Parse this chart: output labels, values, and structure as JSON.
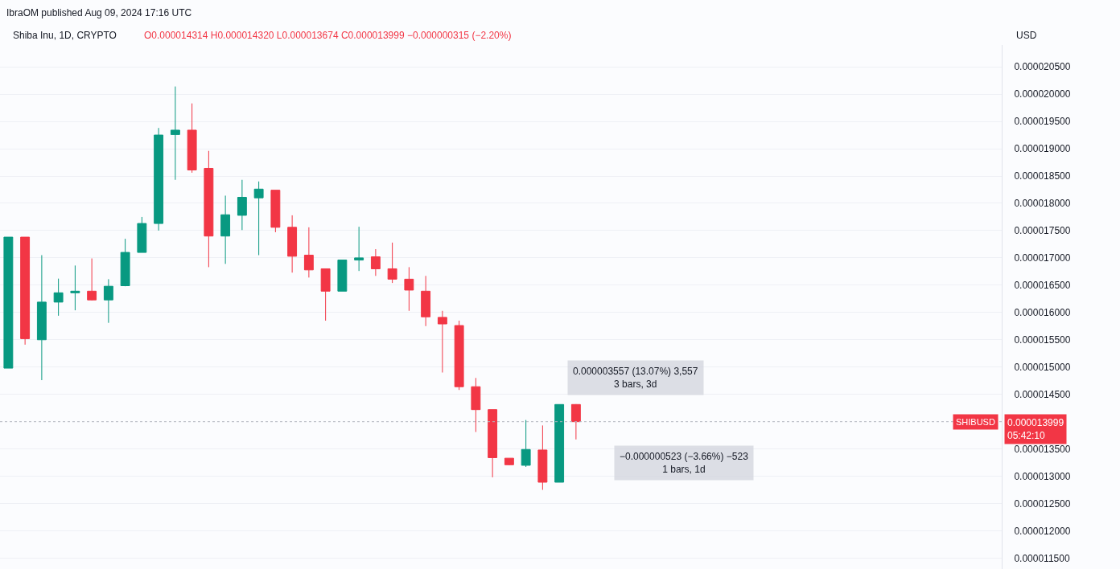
{
  "chart_data": {
    "type": "candlestick",
    "title": "IbraOM published Aug 09, 2024 17:16 UTC",
    "subtitle": "Shiba Inu, 1D, CRYPTO",
    "ylabel": "USD",
    "categories": [
      null,
      null,
      null,
      null,
      null,
      null,
      null,
      null,
      null,
      null,
      null,
      null,
      null,
      null,
      null,
      null,
      null,
      null,
      null,
      null,
      null,
      null,
      null,
      null,
      null,
      null,
      null,
      null,
      null,
      null,
      null,
      null,
      null,
      null,
      null,
      null,
      null,
      null,
      null,
      null,
      null,
      null,
      null,
      null,
      null,
      null,
      null,
      null,
      null,
      null,
      null,
      null,
      null,
      null,
      null,
      null,
      null,
      null,
      null,
      null
    ],
    "ohlc": [
      [
        1.498e-05,
        1.738e-05,
        1.498e-05,
        1.738e-05
      ],
      [
        1.738e-05,
        1.738e-05,
        1.541e-05,
        1.552e-05
      ],
      [
        1.55e-05,
        1.705e-05,
        1.476e-05,
        1.619e-05
      ],
      [
        1.619e-05,
        1.662e-05,
        1.594e-05,
        1.636e-05
      ],
      [
        1.636e-05,
        1.686e-05,
        1.604e-05,
        1.639e-05
      ],
      [
        1.639e-05,
        1.699e-05,
        1.622e-05,
        1.623e-05
      ],
      [
        1.623e-05,
        1.661e-05,
        1.581e-05,
        1.648e-05
      ],
      [
        1.649e-05,
        1.735e-05,
        1.648e-05,
        1.71e-05
      ],
      [
        1.71e-05,
        1.775e-05,
        1.71e-05,
        1.763e-05
      ],
      [
        1.763e-05,
        1.938e-05,
        1.75e-05,
        1.925e-05
      ],
      [
        1.926e-05,
        2.014e-05,
        1.843e-05,
        1.934e-05
      ],
      [
        1.934e-05,
        1.983e-05,
        1.856e-05,
        1.861e-05
      ],
      [
        1.864e-05,
        1.896e-05,
        1.683e-05,
        1.74e-05
      ],
      [
        1.74e-05,
        1.814e-05,
        1.689e-05,
        1.779e-05
      ],
      [
        1.778e-05,
        1.843e-05,
        1.751e-05,
        1.811e-05
      ],
      [
        1.81e-05,
        1.84e-05,
        1.705e-05,
        1.826e-05
      ],
      [
        1.824e-05,
        1.824e-05,
        1.747e-05,
        1.756e-05
      ],
      [
        1.756e-05,
        1.778e-05,
        1.673e-05,
        1.703e-05
      ],
      [
        1.705e-05,
        1.756e-05,
        1.664e-05,
        1.678e-05
      ],
      [
        1.68e-05,
        1.68e-05,
        1.585e-05,
        1.639e-05
      ],
      [
        1.639e-05,
        1.696e-05,
        1.639e-05,
        1.696e-05
      ],
      [
        1.696e-05,
        1.757e-05,
        1.676e-05,
        1.7e-05
      ],
      [
        1.702e-05,
        1.716e-05,
        1.667e-05,
        1.68e-05
      ],
      [
        1.68e-05,
        1.728e-05,
        1.654e-05,
        1.661e-05
      ],
      [
        1.661e-05,
        1.683e-05,
        1.603e-05,
        1.641e-05
      ],
      [
        1.639e-05,
        1.667e-05,
        1.575e-05,
        1.592e-05
      ],
      [
        1.591e-05,
        1.603e-05,
        1.49e-05,
        1.579e-05
      ],
      [
        1.576e-05,
        1.585e-05,
        1.458e-05,
        1.464e-05
      ],
      [
        1.464e-05,
        1.48e-05,
        1.381e-05,
        1.422e-05
      ],
      [
        1.422e-05,
        1.422e-05,
        1.298e-05,
        1.334e-05
      ],
      [
        1.333e-05,
        1.333e-05,
        1.32e-05,
        1.321e-05
      ],
      [
        1.32e-05,
        1.403e-05,
        1.317e-05,
        1.349e-05
      ],
      [
        1.348e-05,
        1.393e-05,
        1.275e-05,
        1.289e-05
      ],
      [
        1.289e-05,
        1.4314e-05,
        1.289e-05,
        1.4314e-05
      ],
      [
        1.4314e-05,
        1.432e-05,
        1.3674e-05,
        1.3999e-05
      ],
      null,
      null,
      null,
      null,
      null,
      null,
      null,
      null,
      null,
      null,
      null,
      null,
      null,
      null,
      null,
      null,
      null,
      null,
      null,
      null,
      null,
      null,
      null,
      null,
      null
    ],
    "colors": [
      "#089981",
      "#f23645",
      "#089981",
      "#089981",
      "#089981",
      "#f23645",
      "#089981",
      "#089981",
      "#089981",
      "#089981",
      "#089981",
      "#f23645",
      "#f23645",
      "#089981",
      "#089981",
      "#089981",
      "#f23645",
      "#f23645",
      "#f23645",
      "#f23645",
      "#089981",
      "#089981",
      "#f23645",
      "#f23645",
      "#f23645",
      "#f23645",
      "#f23645",
      "#f23645",
      "#f23645",
      "#f23645",
      "#f23645",
      "#089981",
      "#f23645",
      "#089981",
      "#f23645",
      null,
      null,
      null,
      null,
      null,
      null,
      null,
      null,
      null,
      null,
      null,
      null,
      null,
      null,
      null,
      null,
      null,
      null,
      null,
      null,
      null,
      null,
      null,
      null,
      null
    ],
    "ylim": [
      1.13e-05,
      2.09e-05
    ],
    "yticks": [
      {
        "value": 1.15e-05,
        "label": "0.000011500"
      },
      {
        "value": 1.2e-05,
        "label": "0.000012000"
      },
      {
        "value": 1.25e-05,
        "label": "0.000012500"
      },
      {
        "value": 1.3e-05,
        "label": "0.000013000"
      },
      {
        "value": 1.35e-05,
        "label": "0.000013500"
      },
      {
        "value": 1.45e-05,
        "label": "0.000014500"
      },
      {
        "value": 1.5e-05,
        "label": "0.000015000"
      },
      {
        "value": 1.55e-05,
        "label": "0.000015500"
      },
      {
        "value": 1.6e-05,
        "label": "0.000016000"
      },
      {
        "value": 1.65e-05,
        "label": "0.000016500"
      },
      {
        "value": 1.7e-05,
        "label": "0.000017000"
      },
      {
        "value": 1.75e-05,
        "label": "0.000017500"
      },
      {
        "value": 1.8e-05,
        "label": "0.000018000"
      },
      {
        "value": 1.85e-05,
        "label": "0.000018500"
      },
      {
        "value": 1.9e-05,
        "label": "0.000019000"
      },
      {
        "value": 1.95e-05,
        "label": "0.000019500"
      },
      {
        "value": 2e-05,
        "label": "0.000020000"
      },
      {
        "value": 2.05e-05,
        "label": "0.000020500"
      }
    ],
    "grid": "y",
    "ref_lines": [
      {
        "axis": "y",
        "value": 1.3999e-05,
        "label": "0.000013999\n05:42:10",
        "color": "#b2b5be",
        "line_style": "dotted"
      }
    ],
    "annotations": [
      "O0.000014314 H0.000014320 L0.000013674 C0.000013999 −0.000000315 (−2.20%)",
      "0.000003557 (13.07%) 3,557\n3 bars, 3d",
      "−0.000000523 (−3.66%) −523\n1 bars, 1d",
      {
        "text": "SHIBUSD",
        "y": 1.3999e-05
      }
    ]
  }
}
